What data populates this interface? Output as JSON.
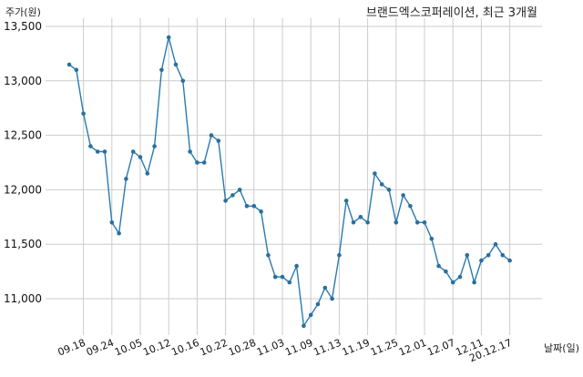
{
  "chart_data": {
    "type": "line",
    "title": "브랜드엑스코퍼레이션, 최근 3개월",
    "ylabel": "주가(원)",
    "xlabel": "날짜(일)",
    "ylim": [
      10650,
      13500
    ],
    "yticks": [
      11000,
      11500,
      12000,
      12500,
      13000,
      13500
    ],
    "ytick_labels": [
      "11,000",
      "11,500",
      "12,000",
      "12,500",
      "13,000",
      "13,500"
    ],
    "xtick_labels": [
      "09.18",
      "09.24",
      "10.05",
      "10.12",
      "10.16",
      "10.22",
      "10.28",
      "11.03",
      "11.09",
      "11.13",
      "11.19",
      "11.25",
      "12.01",
      "12.07",
      "12.11",
      "20.12.17"
    ],
    "xtick_index": [
      2,
      6,
      10,
      14,
      18,
      22,
      26,
      30,
      34,
      38,
      42,
      46,
      50,
      54,
      58,
      62
    ],
    "grid": true,
    "series": [
      {
        "color": "#2a7ab0",
        "values": [
          13150,
          13100,
          12700,
          12400,
          12350,
          12350,
          11700,
          11600,
          12100,
          12350,
          12300,
          12150,
          12400,
          13100,
          13400,
          13150,
          13000,
          12350,
          12250,
          12250,
          12500,
          12450,
          11900,
          11950,
          12000,
          11850,
          11850,
          11800,
          11400,
          11200,
          11200,
          11150,
          11300,
          10750,
          10850,
          10950,
          11100,
          11000,
          11400,
          11900,
          11700,
          11750,
          11700,
          12150,
          12050,
          12000,
          11700,
          11950,
          11850,
          11700,
          11700,
          11550,
          11300,
          11250,
          11150,
          11200,
          11400,
          11150,
          11350,
          11400,
          11500,
          11400,
          11350
        ]
      }
    ]
  }
}
